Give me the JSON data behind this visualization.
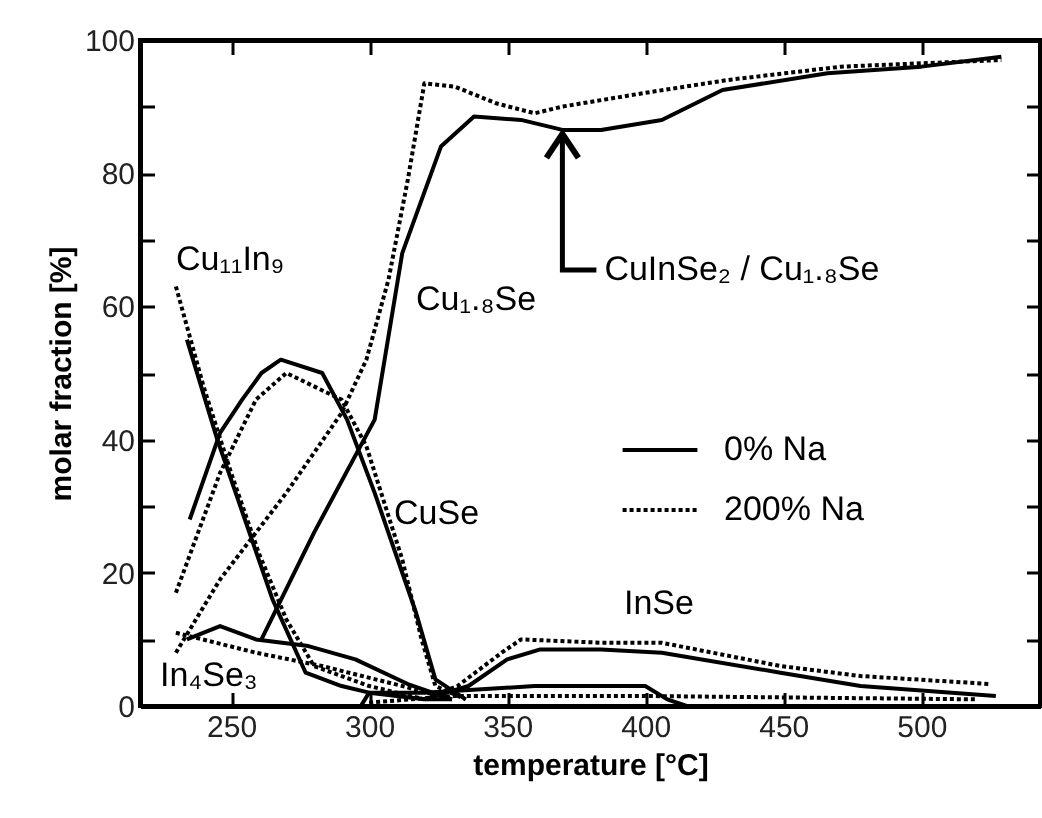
{
  "chart_data": {
    "type": "line",
    "xlabel": "temperature [°C]",
    "ylabel": "molar fraction [%]",
    "xlim": [
      217,
      543
    ],
    "ylim": [
      0,
      100
    ],
    "xticks": [
      250,
      300,
      350,
      400,
      450,
      500
    ],
    "yticks": [
      0,
      {
        "value": 10,
        "label": null
      },
      20,
      {
        "value": 30,
        "label": null
      },
      40,
      {
        "value": 50,
        "label": null
      },
      60,
      {
        "value": 70,
        "label": null
      },
      80,
      {
        "value": 90,
        "label": null
      },
      100
    ],
    "legend": "right",
    "marker": "none",
    "grid": false,
    "series": [
      {
        "name": "0% Na",
        "color": "#000000",
        "line_style": "solid",
        "x": [
          261,
          280,
          302,
          312,
          326,
          338,
          355,
          370,
          384,
          406,
          428,
          466,
          500,
          529
        ],
        "values": [
          10,
          26,
          43,
          68,
          84,
          88.5,
          88,
          86.5,
          86.5,
          88,
          92.5,
          95,
          96,
          97.5
        ]
      },
      {
        "name": "200% Na",
        "color": "#000000",
        "line_style": "dotted",
        "x": [
          230,
          246,
          270,
          290,
          299,
          307,
          314,
          320,
          331,
          346,
          360,
          370,
          399,
          430,
          471,
          529
        ],
        "values": [
          8,
          19,
          32,
          44,
          52,
          64,
          79,
          93.5,
          93,
          90.5,
          89,
          90,
          92,
          94,
          96,
          97
        ]
      },
      {
        "color": "#000000",
        "line_style": "solid",
        "x": [
          234,
          245,
          255,
          265,
          277,
          290,
          300,
          320,
          330
        ],
        "values": [
          55,
          40,
          28,
          16,
          5,
          3,
          2,
          1,
          1
        ]
      },
      {
        "color": "#000000",
        "line_style": "dotted",
        "x": [
          230,
          240,
          250,
          260,
          270,
          280,
          300,
          320
        ],
        "values": [
          63,
          48,
          35,
          23,
          13,
          6,
          3,
          1
        ]
      },
      {
        "color": "#000000",
        "line_style": "solid",
        "x": [
          235,
          246,
          254,
          261,
          268,
          283,
          292,
          302,
          317,
          324,
          335
        ],
        "values": [
          28,
          41,
          46,
          50,
          52,
          50,
          43,
          32,
          14,
          4,
          1
        ]
      },
      {
        "color": "#000000",
        "line_style": "dotted",
        "x": [
          230,
          246,
          259,
          270,
          290,
          299,
          312,
          319,
          324,
          335
        ],
        "values": [
          17,
          35,
          46,
          50,
          46,
          39,
          22,
          10,
          3,
          1
        ]
      },
      {
        "color": "#000000",
        "line_style": "solid",
        "x": [
          320,
          336,
          350,
          362,
          384,
          406,
          449,
          478,
          527
        ],
        "values": [
          1,
          3,
          7,
          8.5,
          8.5,
          8,
          5,
          3,
          1.5
        ]
      },
      {
        "color": "#000000",
        "line_style": "dotted",
        "x": [
          320,
          332,
          348,
          355,
          384,
          406,
          449,
          478,
          525
        ],
        "values": [
          1,
          3,
          8,
          10,
          9.5,
          9.5,
          6,
          4.5,
          3.3
        ]
      },
      {
        "color": "#000000",
        "line_style": "solid",
        "x": [
          234,
          246,
          259,
          278,
          295,
          314,
          330
        ],
        "values": [
          10,
          12,
          10,
          9,
          7,
          3.3,
          1
        ]
      },
      {
        "color": "#000000",
        "line_style": "dotted",
        "x": [
          230,
          259,
          283,
          312,
          330
        ],
        "values": [
          11,
          8,
          6,
          3,
          1
        ]
      },
      {
        "color": "#000000",
        "line_style": "solid",
        "x": [
          297,
          300,
          320,
          360,
          400,
          408,
          415
        ],
        "values": [
          0,
          2,
          2,
          3,
          3,
          1,
          0
        ]
      },
      {
        "color": "#000000",
        "line_style": "dotted",
        "x": [
          300,
          330,
          400,
          520
        ],
        "values": [
          0.5,
          1.5,
          1.5,
          1
        ]
      }
    ],
    "annotations": [
      "Cu₁₁In₉",
      "Cu₁.₈Se",
      "CuSe",
      "InSe",
      "In₄Se₃",
      {
        "text": "CuInSe₂ / Cu₁.₈Se",
        "x": 370,
        "y": 86.5
      }
    ]
  }
}
